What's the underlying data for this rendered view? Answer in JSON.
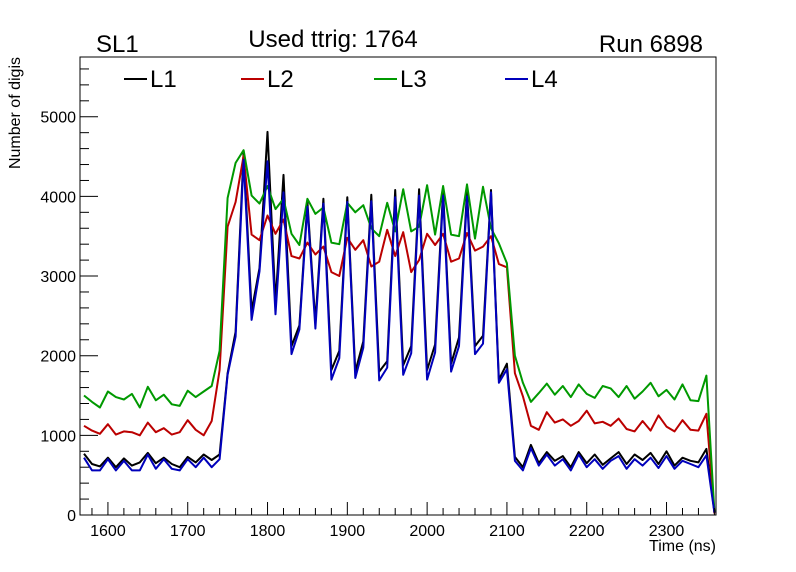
{
  "chart_data": {
    "type": "line",
    "title_left": "SL1",
    "title_center": "Used ttrig: 1764",
    "title_right": "Run 6898",
    "xlabel": "Time (ns)",
    "ylabel": "Number of digis",
    "xlim": [
      1565,
      2362
    ],
    "ylim": [
      0,
      5750
    ],
    "xticks": [
      1600,
      1700,
      1800,
      1900,
      2000,
      2100,
      2200,
      2300
    ],
    "yticks": [
      0,
      1000,
      2000,
      3000,
      4000,
      5000
    ],
    "grid": false,
    "legend_position": "top",
    "x": [
      1570,
      1580,
      1590,
      1600,
      1610,
      1620,
      1630,
      1640,
      1650,
      1660,
      1670,
      1680,
      1690,
      1700,
      1710,
      1720,
      1730,
      1740,
      1750,
      1760,
      1770,
      1780,
      1790,
      1800,
      1810,
      1820,
      1830,
      1840,
      1850,
      1860,
      1870,
      1880,
      1890,
      1900,
      1910,
      1920,
      1930,
      1940,
      1950,
      1960,
      1970,
      1980,
      1990,
      2000,
      2010,
      2020,
      2030,
      2040,
      2050,
      2060,
      2070,
      2080,
      2090,
      2100,
      2110,
      2120,
      2130,
      2140,
      2150,
      2160,
      2170,
      2180,
      2190,
      2200,
      2210,
      2220,
      2230,
      2240,
      2250,
      2260,
      2270,
      2280,
      2290,
      2300,
      2310,
      2320,
      2330,
      2340,
      2350,
      2360
    ],
    "series": [
      {
        "name": "L1",
        "color": "#000000",
        "values": [
          770,
          640,
          610,
          720,
          600,
          710,
          620,
          660,
          780,
          650,
          720,
          640,
          600,
          730,
          660,
          760,
          690,
          760,
          1780,
          2300,
          4560,
          2560,
          3100,
          4810,
          2660,
          4270,
          2120,
          2380,
          3930,
          2420,
          3970,
          1820,
          2060,
          3990,
          1800,
          2180,
          4020,
          1800,
          1930,
          4080,
          1880,
          2120,
          4090,
          1820,
          2140,
          4080,
          1900,
          2230,
          4070,
          2120,
          2250,
          4080,
          1700,
          1900,
          730,
          600,
          880,
          650,
          790,
          680,
          740,
          600,
          790,
          650,
          760,
          630,
          710,
          790,
          640,
          760,
          690,
          780,
          640,
          800,
          620,
          720,
          680,
          660,
          830,
          40
        ]
      },
      {
        "name": "L2",
        "color": "#bb0000",
        "values": [
          1120,
          1060,
          1020,
          1140,
          1010,
          1050,
          1040,
          1000,
          1160,
          1040,
          1090,
          1010,
          1040,
          1190,
          1070,
          1000,
          1180,
          1820,
          3620,
          3930,
          4510,
          3520,
          3450,
          3760,
          3530,
          3710,
          3250,
          3220,
          3420,
          3270,
          3370,
          3050,
          3000,
          3480,
          3330,
          3450,
          3120,
          3180,
          3580,
          3250,
          3550,
          3050,
          3200,
          3530,
          3390,
          3530,
          3180,
          3220,
          3540,
          3320,
          3370,
          3500,
          3150,
          3110,
          1780,
          1490,
          1120,
          1070,
          1290,
          1160,
          1200,
          1120,
          1180,
          1310,
          1150,
          1170,
          1120,
          1210,
          1080,
          1050,
          1180,
          1060,
          1250,
          1110,
          1050,
          1190,
          1070,
          1060,
          1270,
          20
        ]
      },
      {
        "name": "L3",
        "color": "#009900",
        "values": [
          1500,
          1420,
          1350,
          1550,
          1480,
          1450,
          1520,
          1350,
          1610,
          1440,
          1510,
          1390,
          1370,
          1560,
          1480,
          1550,
          1620,
          2060,
          3980,
          4420,
          4580,
          4010,
          3910,
          4130,
          3840,
          3970,
          3530,
          3390,
          3970,
          3780,
          3860,
          3420,
          3400,
          3920,
          3800,
          3890,
          3600,
          3500,
          3920,
          3560,
          4090,
          3560,
          3620,
          4140,
          3520,
          4130,
          3520,
          3500,
          4150,
          3470,
          4120,
          3600,
          3410,
          3160,
          2000,
          1660,
          1420,
          1530,
          1650,
          1510,
          1620,
          1480,
          1640,
          1520,
          1470,
          1620,
          1590,
          1480,
          1620,
          1460,
          1550,
          1660,
          1490,
          1570,
          1450,
          1640,
          1440,
          1430,
          1750,
          40
        ]
      },
      {
        "name": "L4",
        "color": "#0000bb",
        "values": [
          720,
          560,
          560,
          700,
          560,
          680,
          560,
          560,
          760,
          580,
          700,
          580,
          560,
          700,
          600,
          720,
          600,
          700,
          1760,
          2240,
          4460,
          2450,
          3060,
          4440,
          2520,
          4050,
          2020,
          2330,
          3870,
          2340,
          3910,
          1700,
          1970,
          3930,
          1720,
          2100,
          3940,
          1690,
          1850,
          3990,
          1760,
          2030,
          4010,
          1700,
          2040,
          4010,
          1800,
          2120,
          4000,
          2020,
          2150,
          4050,
          1660,
          1830,
          680,
          560,
          840,
          620,
          760,
          620,
          700,
          560,
          760,
          600,
          700,
          580,
          680,
          740,
          580,
          700,
          620,
          720,
          590,
          740,
          580,
          680,
          640,
          600,
          750,
          30
        ]
      }
    ]
  }
}
